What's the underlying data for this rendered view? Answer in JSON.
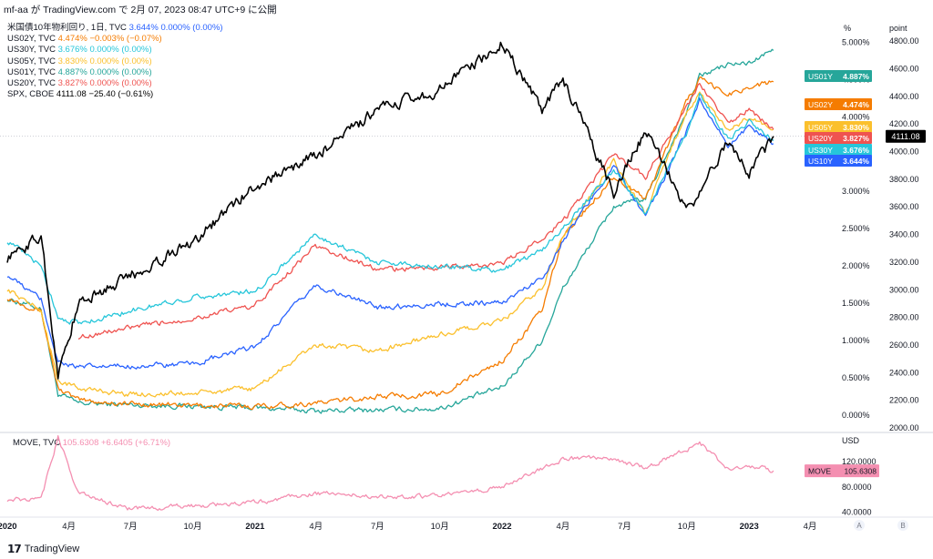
{
  "header": {
    "title": "mf-aa が TradingView.com で 2月 07, 2023 08:47 UTC+9 に公開"
  },
  "legend": [
    {
      "name": "米国債10年物利回り, 1日, TVC",
      "last": "3.644%",
      "chg": "0.000% (0.00%)",
      "color": "#2962ff"
    },
    {
      "name": "US02Y, TVC",
      "last": "4.474%",
      "chg": "−0.003% (−0.07%)",
      "color": "#f57c00"
    },
    {
      "name": "US30Y, TVC",
      "last": "3.676%",
      "chg": "0.000% (0.00%)",
      "color": "#26c6da"
    },
    {
      "name": "US05Y, TVC",
      "last": "3.830%",
      "chg": "0.000% (0.00%)",
      "color": "#fbc02d"
    },
    {
      "name": "US01Y, TVC",
      "last": "4.887%",
      "chg": "0.000% (0.00%)",
      "color": "#26a69a"
    },
    {
      "name": "US20Y, TVC",
      "last": "3.827%",
      "chg": "0.000% (0.00%)",
      "color": "#ef5350"
    },
    {
      "name": "SPX, CBOE",
      "last": "4111.08",
      "chg": "−25.40 (−0.61%)",
      "color": "#000000"
    }
  ],
  "move_legend": {
    "name": "MOVE, TVC",
    "last": "105.6308",
    "chg": "+6.6405 (+6.71%)",
    "color": "#f48fb1"
  },
  "axes": {
    "pct_unit": "%",
    "point_unit": "point",
    "usd_unit": "USD",
    "pct_ticks": [
      "5.000%",
      "4.500%",
      "4.000%",
      "3.500%",
      "3.000%",
      "2.500%",
      "2.000%",
      "1.500%",
      "1.000%",
      "0.500%",
      "0.000%"
    ],
    "point_ticks": [
      "4800.00",
      "4600.00",
      "4400.00",
      "4200.00",
      "4000.00",
      "3800.00",
      "3600.00",
      "3400.00",
      "3200.00",
      "3000.00",
      "2800.00",
      "2600.00",
      "2400.00",
      "2200.00",
      "2000.00"
    ],
    "usd_ticks": [
      "120.0000",
      "80.0000",
      "40.0000"
    ],
    "x_ticks": [
      "2020",
      "4月",
      "7月",
      "10月",
      "2021",
      "4月",
      "7月",
      "10月",
      "2022",
      "4月",
      "7月",
      "10月",
      "2023",
      "4月"
    ],
    "scale_buttons": [
      "A",
      "B"
    ]
  },
  "badges": [
    {
      "label": "US01Y",
      "value": "4.887%",
      "color": "#26a69a"
    },
    {
      "label": "US02Y",
      "value": "4.474%",
      "color": "#f57c00"
    },
    {
      "label": "US05Y",
      "value": "3.830%",
      "color": "#fbc02d"
    },
    {
      "label": "US20Y",
      "value": "3.827%",
      "color": "#ef5350"
    },
    {
      "label": "US30Y",
      "value": "3.676%",
      "color": "#26c6da"
    },
    {
      "label": "US10Y",
      "value": "3.644%",
      "color": "#2962ff"
    }
  ],
  "spx_badge": {
    "value": "4111.08",
    "color": "#000000"
  },
  "move_badge": {
    "label": "MOVE",
    "value": "105.6308",
    "color": "#f48fb1"
  },
  "footer": {
    "brand": "TradingView"
  },
  "chart_data": {
    "type": "line",
    "x": [
      "2020-01-01",
      "2020-02-20",
      "2020-03-16",
      "2020-04-15",
      "2020-07-01",
      "2020-10-01",
      "2021-01-01",
      "2021-03-31",
      "2021-07-01",
      "2021-10-01",
      "2022-01-01",
      "2022-03-01",
      "2022-04-01",
      "2022-06-15",
      "2022-08-01",
      "2022-09-30",
      "2022-10-20",
      "2022-12-01",
      "2023-01-01",
      "2023-02-06"
    ],
    "series": [
      {
        "name": "US10Y",
        "axis": "pct",
        "color": "#2962ff",
        "values": [
          1.88,
          1.55,
          0.72,
          0.64,
          0.66,
          0.68,
          0.92,
          1.74,
          1.45,
          1.49,
          1.51,
          1.84,
          2.34,
          3.35,
          2.65,
          3.8,
          4.24,
          3.6,
          3.88,
          3.64
        ]
      },
      {
        "name": "US02Y",
        "axis": "pct",
        "color": "#f57c00",
        "values": [
          1.58,
          1.4,
          0.36,
          0.2,
          0.15,
          0.13,
          0.12,
          0.16,
          0.25,
          0.28,
          0.73,
          1.4,
          2.4,
          3.2,
          2.9,
          4.2,
          4.5,
          4.3,
          4.4,
          4.47
        ]
      },
      {
        "name": "US30Y",
        "axis": "pct",
        "color": "#26c6da",
        "values": [
          2.34,
          2.0,
          1.32,
          1.23,
          1.4,
          1.58,
          1.66,
          2.42,
          2.05,
          2.0,
          1.94,
          2.22,
          2.5,
          3.3,
          2.7,
          3.78,
          4.3,
          3.7,
          3.93,
          3.68
        ]
      },
      {
        "name": "US05Y",
        "axis": "pct",
        "color": "#fbc02d",
        "values": [
          1.69,
          1.4,
          0.46,
          0.36,
          0.28,
          0.29,
          0.36,
          0.94,
          0.86,
          1.08,
          1.26,
          1.7,
          2.4,
          3.4,
          2.7,
          4.07,
          4.3,
          3.8,
          4.0,
          3.83
        ]
      },
      {
        "name": "US01Y",
        "axis": "pct",
        "color": "#26a69a",
        "values": [
          1.56,
          1.43,
          0.28,
          0.16,
          0.14,
          0.12,
          0.1,
          0.06,
          0.07,
          0.09,
          0.38,
          1.0,
          1.7,
          2.8,
          2.9,
          4.05,
          4.55,
          4.7,
          4.72,
          4.89
        ]
      },
      {
        "name": "US20Y",
        "axis": "pct",
        "color": "#ef5350",
        "values": [
          null,
          null,
          null,
          1.05,
          1.17,
          1.3,
          1.47,
          2.27,
          1.95,
          1.98,
          2.02,
          2.38,
          2.6,
          3.5,
          3.2,
          4.1,
          4.45,
          3.9,
          4.1,
          3.83
        ]
      },
      {
        "name": "SPX",
        "axis": "point",
        "color": "#000000",
        "values": [
          3230,
          3386,
          2386,
          2900,
          3100,
          3350,
          3750,
          3970,
          4300,
          4450,
          4790,
          4300,
          4530,
          3700,
          4150,
          3580,
          3700,
          4080,
          3840,
          4111
        ]
      },
      {
        "name": "MOVE",
        "axis": "usd",
        "color": "#f48fb1",
        "values": [
          60,
          60,
          160,
          70,
          45,
          50,
          55,
          70,
          65,
          65,
          80,
          110,
          125,
          125,
          110,
          140,
          150,
          110,
          115,
          105.63
        ]
      }
    ],
    "pct_range": [
      0,
      5.2
    ],
    "point_range": [
      2000,
      4900
    ],
    "usd_range": [
      35,
      165
    ]
  }
}
